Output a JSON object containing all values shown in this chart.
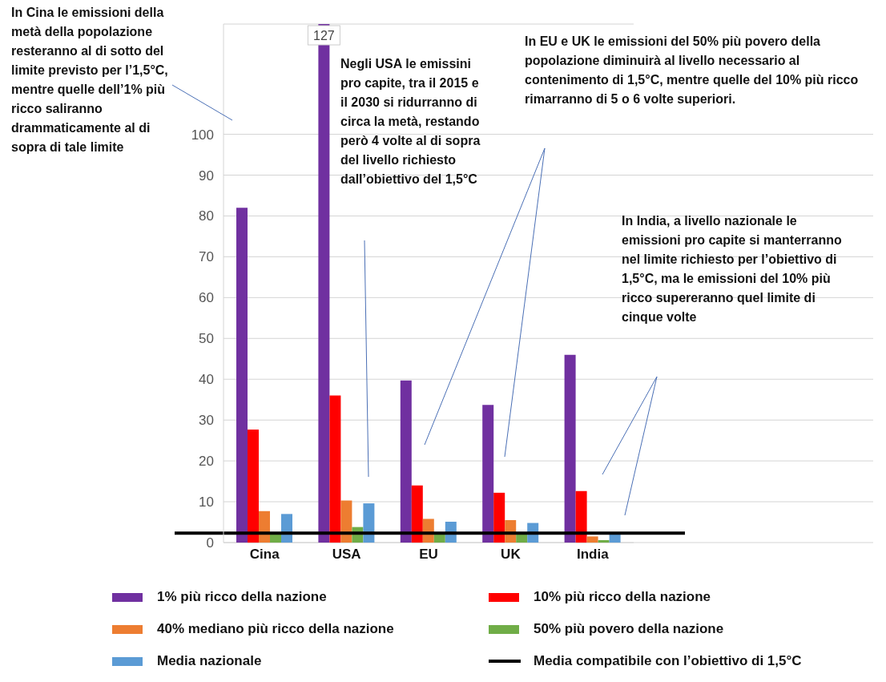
{
  "chart_data": {
    "type": "bar",
    "categories": [
      "Cina",
      "USA",
      "EU",
      "UK",
      "India"
    ],
    "series": [
      {
        "name": "1% più ricco della nazione",
        "color": "#7030a0",
        "values": [
          82,
          127,
          39.7,
          33.7,
          46
        ],
        "value_labels": [
          null,
          "127",
          null,
          null,
          null
        ]
      },
      {
        "name": "10% più ricco della nazione",
        "color": "#ff0000",
        "values": [
          27.7,
          36,
          14,
          12.2,
          12.6
        ]
      },
      {
        "name": "40% mediano più ricco della nazione",
        "color": "#ed7d31",
        "values": [
          7.7,
          10.3,
          5.8,
          5.5,
          1.5
        ]
      },
      {
        "name": "50% più povero della nazione",
        "color": "#70ad47",
        "values": [
          2,
          3.8,
          2.5,
          2.5,
          0.6
        ]
      },
      {
        "name": "Media nazionale",
        "color": "#5b9bd5",
        "values": [
          7,
          9.6,
          5.1,
          4.8,
          2.2
        ]
      }
    ],
    "ref_lines": [
      {
        "axis": "y",
        "value": 2.3,
        "label": "Media compatibile con l’obiettivo di 1,5°C",
        "color": "#000000"
      }
    ],
    "ylim": [
      0,
      127
    ],
    "yticks": [
      0,
      10,
      20,
      30,
      40,
      50,
      60,
      70,
      80,
      90,
      100
    ],
    "grid": "y",
    "legend": "bottom",
    "annotations": [
      "In Cina le emissioni della metà della popolazione resteranno al di sotto del limite previsto per l’1,5°C, mentre quelle dell’1% più ricco saliranno drammaticamente al di sopra di tale limite",
      "Negli USA le emissini pro capite, tra il 2015 e il 2030 si ridurranno di circa la metà, restando però 4 volte al di sopra del livello richiesto dall’obiettivo del 1,5°C",
      "In EU e UK le emissioni del 50% più povero della popolazione diminuirà al livello necessario al contenimento di 1,5°C, mentre quelle del 10% più ricco rimarranno di 5 o 6 volte superiori.",
      "In India, a livello nazionale le emissioni pro capite si manterranno nel limite richiesto per l’obiettivo  di 1,5°C, ma le emissioni del 10% più ricco supereranno quel limite di cinque volte"
    ]
  }
}
